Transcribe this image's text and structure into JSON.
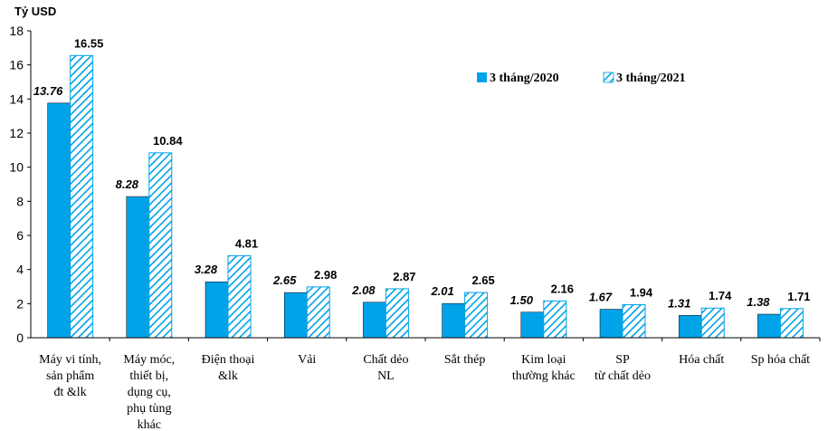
{
  "chart_data": {
    "type": "bar",
    "ylabel": "Tỷ USD",
    "ylim": [
      0,
      18
    ],
    "yticks": [
      0,
      2,
      4,
      6,
      8,
      10,
      12,
      14,
      16,
      18
    ],
    "grid": false,
    "legend_position": "top-right",
    "categories": [
      [
        "Máy vi tính,",
        "sản phẩm",
        "đt &lk"
      ],
      [
        "Máy móc,",
        "thiết bị,",
        "dụng cụ,",
        "phụ tùng",
        "khác"
      ],
      [
        "Điện thoại",
        "&lk"
      ],
      [
        "Vải"
      ],
      [
        "Chất dẻo",
        "NL"
      ],
      [
        "Sắt thép"
      ],
      [
        "Kim loại",
        "thường khác"
      ],
      [
        "SP",
        "từ chất dẻo"
      ],
      [
        "Hóa chất"
      ],
      [
        "Sp hóa chất"
      ]
    ],
    "series": [
      {
        "name": "3 tháng/2020",
        "color": "#00a2e8",
        "pattern": "solid",
        "values": [
          13.76,
          8.28,
          3.28,
          2.65,
          2.08,
          2.01,
          1.5,
          1.67,
          1.31,
          1.38
        ],
        "labels": [
          "13.76",
          "8.28",
          "3.28",
          "2.65",
          "2.08",
          "2.01",
          "1.50",
          "1.67",
          "1.31",
          "1.38"
        ]
      },
      {
        "name": "3 tháng/2021",
        "color": "#00a2e8",
        "pattern": "diagonal-hatch",
        "values": [
          16.55,
          10.84,
          4.81,
          2.98,
          2.87,
          2.65,
          2.16,
          1.94,
          1.74,
          1.71
        ],
        "labels": [
          "16.55",
          "10.84",
          "4.81",
          "2.98",
          "2.87",
          "2.65",
          "2.16",
          "1.94",
          "1.74",
          "1.71"
        ]
      }
    ]
  }
}
